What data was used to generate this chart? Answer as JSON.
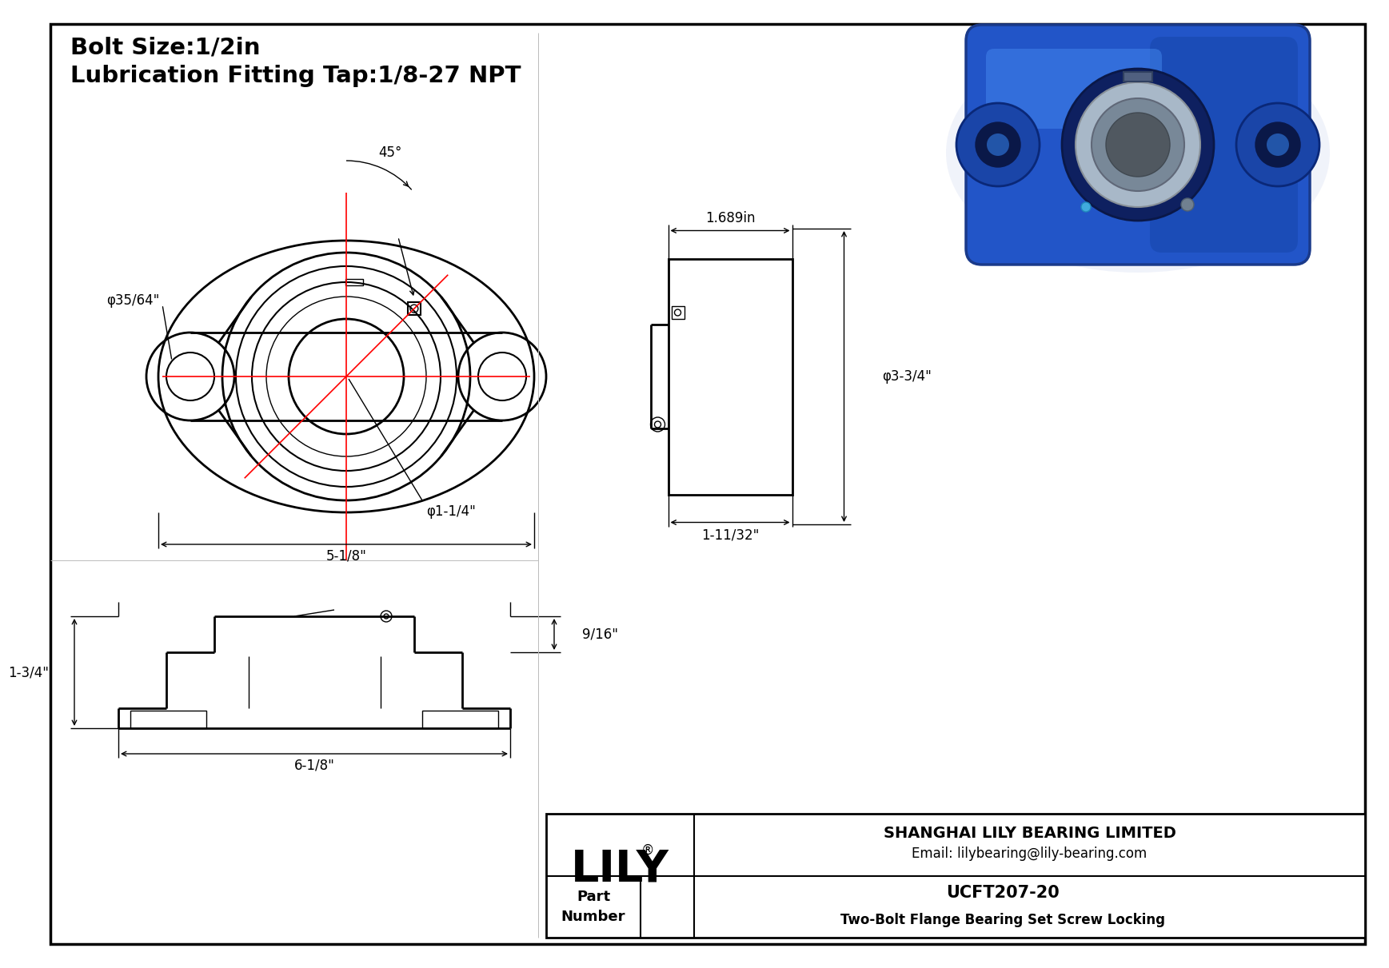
{
  "title_line1": "Bolt Size:1/2in",
  "title_line2": "Lubrication Fitting Tap:1/8-27 NPT",
  "bg_color": "#ffffff",
  "drawing_color": "#000000",
  "center_line_color": "#ff0000",
  "company": "SHANGHAI LILY BEARING LIMITED",
  "email": "Email: lilybearing@lily-bearing.com",
  "part_label": "Part\nNumber",
  "part_number": "UCFT207-20",
  "part_desc": "Two-Bolt Flange Bearing Set Screw Locking",
  "logo": "LILY",
  "logo_reg": "®",
  "dim_5_1_8": "5-1/8\"",
  "dim_phi_1_1_4": "φ1-1/4\"",
  "dim_phi_35_64": "φ35/64\"",
  "dim_45deg": "45°",
  "dim_1_689": "1.689in",
  "dim_phi_3_3_4": "φ3-3/4\"",
  "dim_1_11_32": "1-11/32\"",
  "dim_6_1_8": "6-1/8\"",
  "dim_1_3_4": "1-3/4\"",
  "dim_9_16": "9/16\""
}
